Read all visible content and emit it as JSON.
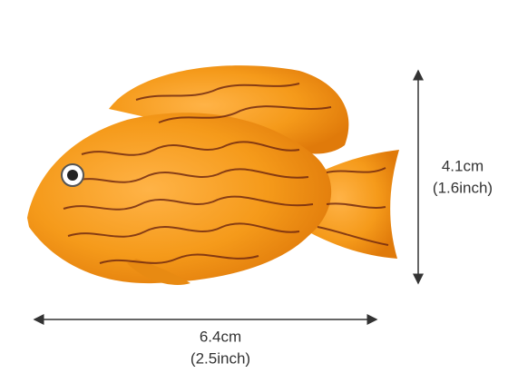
{
  "dimensions": {
    "height": {
      "metric": "4.1cm",
      "imperial": "(1.6inch)"
    },
    "width": {
      "metric": "6.4cm",
      "imperial": "(2.5inch)"
    }
  }
}
